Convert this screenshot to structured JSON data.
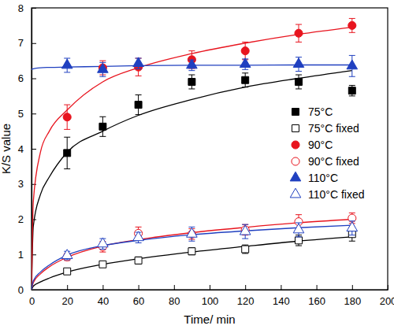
{
  "chart_data": {
    "type": "scatter",
    "x_label": "Time/ min",
    "y_label": "K/S value",
    "x": [
      20,
      40,
      60,
      90,
      120,
      150,
      180
    ],
    "xlim": [
      0,
      200
    ],
    "xticks": [
      0,
      20,
      40,
      60,
      80,
      100,
      120,
      140,
      160,
      180,
      200
    ],
    "ylim": [
      0,
      8
    ],
    "yticks": [
      0,
      1,
      2,
      3,
      4,
      5,
      6,
      7,
      8
    ],
    "legend": "right",
    "fit_x": [
      0,
      1,
      5,
      10,
      20,
      40,
      60,
      90,
      120,
      150,
      180
    ],
    "series": [
      {
        "name": "75°C",
        "color": "#000000",
        "marker": "square",
        "values": [
          3.88,
          4.63,
          5.25,
          5.9,
          5.95,
          5.9,
          5.65
        ],
        "errors": [
          0.45,
          0.28,
          0.28,
          0.2,
          0.2,
          0.2,
          0.15
        ],
        "fit": [
          0,
          1.8,
          2.7,
          3.2,
          3.9,
          4.5,
          4.95,
          5.4,
          5.75,
          6.0,
          6.22
        ]
      },
      {
        "name": "75°C fixed",
        "color": "#000000",
        "marker": "square-open",
        "values": [
          0.52,
          0.72,
          0.83,
          1.09,
          1.15,
          1.4,
          1.58
        ],
        "errors": [
          0.05,
          0.08,
          0.1,
          0.1,
          0.12,
          0.15,
          0.2
        ],
        "fit": [
          0,
          0.1,
          0.22,
          0.33,
          0.5,
          0.72,
          0.88,
          1.07,
          1.23,
          1.38,
          1.5
        ]
      },
      {
        "name": "90°C",
        "color": "#e8141e",
        "marker": "circle",
        "values": [
          4.9,
          6.3,
          6.32,
          6.53,
          6.78,
          7.28,
          7.5
        ],
        "errors": [
          0.35,
          0.2,
          0.25,
          0.25,
          0.25,
          0.25,
          0.2
        ],
        "fit": [
          0,
          2.5,
          3.9,
          4.5,
          5.1,
          5.9,
          6.3,
          6.7,
          7.0,
          7.25,
          7.45
        ]
      },
      {
        "name": "90°C fixed",
        "color": "#e8141e",
        "marker": "circle-open",
        "values": [
          0.93,
          1.22,
          1.6,
          1.58,
          1.7,
          1.93,
          2.03
        ],
        "errors": [
          0.1,
          0.15,
          0.18,
          0.15,
          0.15,
          0.2,
          0.15
        ],
        "fit": [
          0,
          0.2,
          0.45,
          0.65,
          0.92,
          1.24,
          1.42,
          1.62,
          1.77,
          1.9,
          2.0
        ]
      },
      {
        "name": "110°C",
        "color": "#2040c0",
        "marker": "triangle",
        "values": [
          6.37,
          6.25,
          6.42,
          6.37,
          6.4,
          6.4,
          6.35
        ],
        "errors": [
          0.2,
          0.2,
          0.15,
          0.15,
          0.15,
          0.2,
          0.3
        ],
        "fit": [
          6.25,
          6.27,
          6.3,
          6.31,
          6.32,
          6.34,
          6.36,
          6.37,
          6.37,
          6.38,
          6.38
        ]
      },
      {
        "name": "110°C fixed",
        "color": "#2040c0",
        "marker": "triangle-open",
        "values": [
          0.97,
          1.3,
          1.48,
          1.58,
          1.65,
          1.7,
          1.75
        ],
        "errors": [
          0.12,
          0.15,
          0.15,
          0.2,
          0.2,
          0.2,
          0.2
        ],
        "fit": [
          0,
          0.25,
          0.5,
          0.7,
          0.98,
          1.25,
          1.4,
          1.56,
          1.67,
          1.76,
          1.83
        ]
      }
    ]
  }
}
